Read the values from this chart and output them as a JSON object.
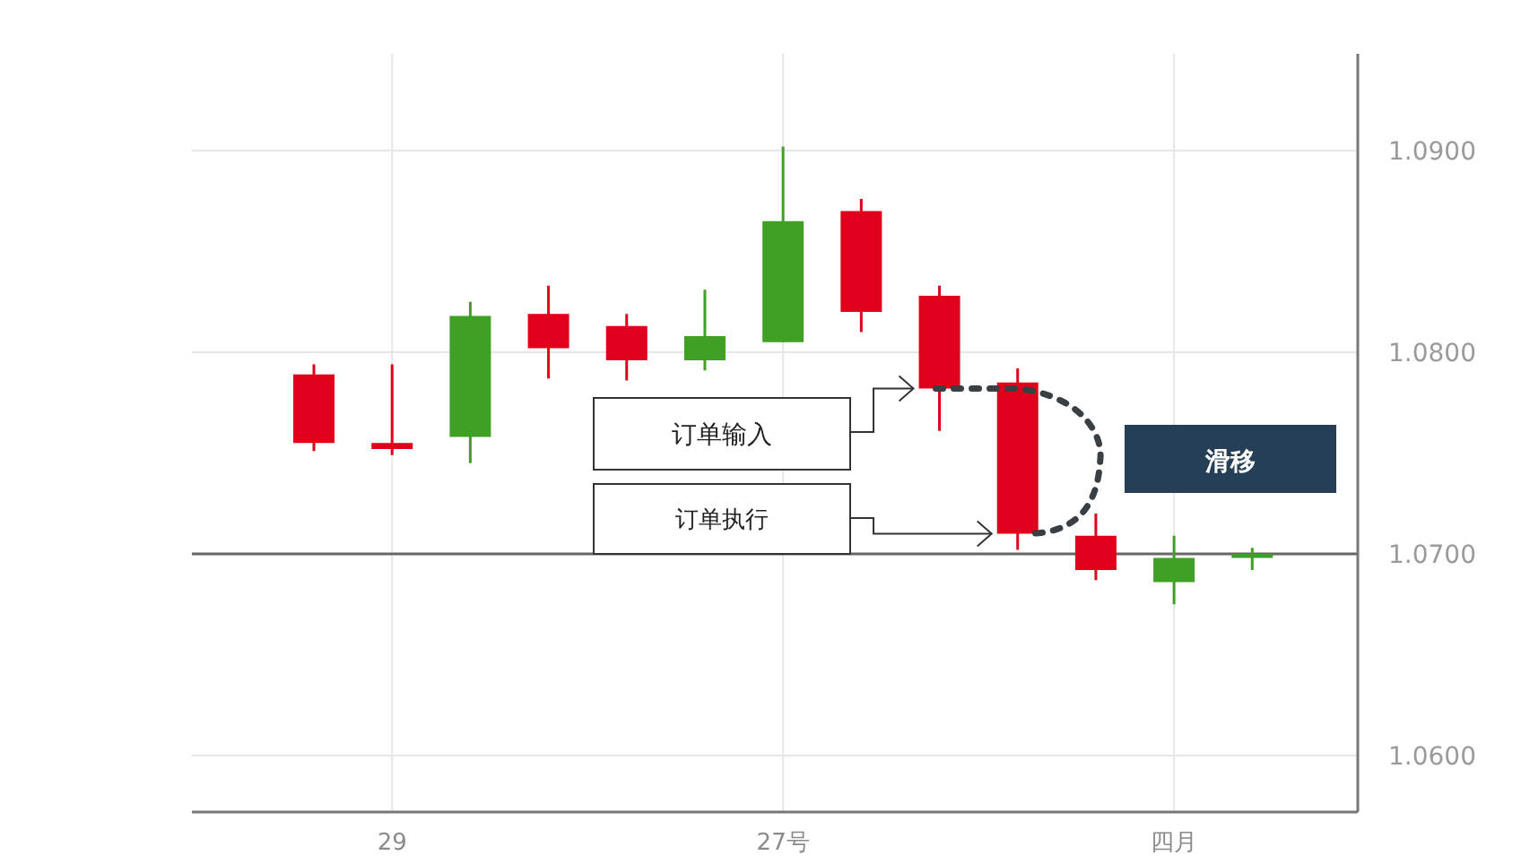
{
  "chart_data": {
    "type": "candlestick",
    "categories": [
      null,
      "29",
      null,
      null,
      null,
      null,
      "27号",
      null,
      null,
      null,
      null,
      "四月",
      null
    ],
    "ohlc": [
      [
        1.0789,
        1.0794,
        1.0751,
        1.0755
      ],
      [
        1.0755,
        1.0794,
        1.0749,
        1.0752
      ],
      [
        1.0758,
        1.0825,
        1.0745,
        1.0818
      ],
      [
        1.0819,
        1.0833,
        1.0787,
        1.0802
      ],
      [
        1.0813,
        1.0819,
        1.0786,
        1.0796
      ],
      [
        1.0796,
        1.0831,
        1.0791,
        1.0808
      ],
      [
        1.0805,
        1.0902,
        1.0805,
        1.0865
      ],
      [
        1.087,
        1.0876,
        1.081,
        1.082
      ],
      [
        1.0828,
        1.0833,
        1.0761,
        1.0782
      ],
      [
        1.0785,
        1.0792,
        1.0702,
        1.071
      ],
      [
        1.0709,
        1.072,
        1.0687,
        1.0692
      ],
      [
        1.0686,
        1.0709,
        1.0675,
        1.0698
      ],
      [
        1.0698,
        1.0703,
        1.0692,
        1.07
      ]
    ],
    "colors": [
      "#e0001b",
      "#e0001b",
      "#3fa025",
      "#e0001b",
      "#e0001b",
      "#3fa025",
      "#3fa025",
      "#e0001b",
      "#e0001b",
      "#e0001b",
      "#e0001b",
      "#3fa025",
      "#3fa025"
    ],
    "ylim": [
      1.0572,
      1.0948
    ],
    "yticks": [
      {
        "value": 1.06,
        "label": "1.0600"
      },
      {
        "value": 1.07,
        "label": "1.0700"
      },
      {
        "value": 1.08,
        "label": "1.0800"
      },
      {
        "value": 1.09,
        "label": "1.0900"
      }
    ],
    "grid": true,
    "ref_lines": [
      {
        "axis": "y",
        "value": 1.07,
        "color": "#666666"
      }
    ],
    "annotations": [
      "订单输入",
      "订单执行",
      "滑移"
    ]
  }
}
